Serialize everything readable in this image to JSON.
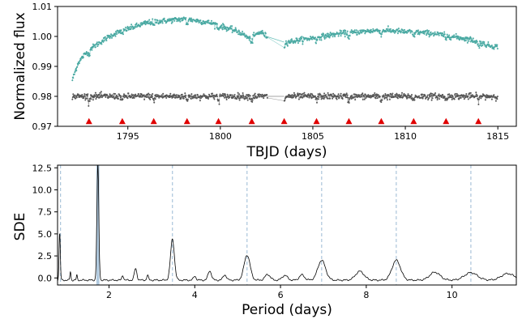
{
  "chart_data": [
    {
      "type": "scatter",
      "xlabel": "TBJD (days)",
      "ylabel": "Normalized flux",
      "xlim": [
        1791.2,
        1816.0
      ],
      "ylim": [
        0.97,
        1.01
      ],
      "xticks": [
        1795,
        1800,
        1805,
        1810,
        1815
      ],
      "xtick_labels": [
        "1795",
        "1800",
        "1805",
        "1810",
        "1815"
      ],
      "yticks": [
        0.97,
        0.98,
        0.99,
        1.0,
        1.01
      ],
      "ytick_labels": [
        "0.97",
        "0.98",
        "0.99",
        "1.00",
        "1.01"
      ],
      "grid": false,
      "colors": {
        "raw_flux": "#6fc3bd",
        "detrended_flux": "#555555",
        "transit_marker": "#e00000"
      },
      "raw_flux": {
        "x": [
          1792.0,
          1792.3,
          1792.6,
          1793.0,
          1793.5,
          1794.0,
          1794.5,
          1795.0,
          1795.5,
          1796.0,
          1796.5,
          1797.0,
          1797.5,
          1798.0,
          1798.5,
          1799.0,
          1799.5,
          1800.0,
          1800.5,
          1801.0,
          1801.3,
          1801.6,
          1801.9,
          1802.2,
          1802.5,
          1803.5,
          1804.0,
          1804.5,
          1805.0,
          1805.5,
          1806.0,
          1806.5,
          1807.0,
          1807.5,
          1808.0,
          1808.5,
          1809.0,
          1809.5,
          1810.0,
          1810.5,
          1811.0,
          1811.5,
          1812.0,
          1812.5,
          1813.0,
          1813.5,
          1814.0,
          1814.5,
          1815.0
        ],
        "y": [
          0.9855,
          0.991,
          0.9935,
          0.996,
          0.998,
          1.0,
          1.0015,
          1.0025,
          1.0035,
          1.0045,
          1.005,
          1.0052,
          1.0055,
          1.0058,
          1.0055,
          1.005,
          1.0045,
          1.0035,
          1.0025,
          1.0015,
          1.0005,
          0.999,
          1.0005,
          1.0015,
          1.0,
          0.998,
          0.9985,
          0.999,
          0.9995,
          1.0,
          1.0005,
          1.001,
          1.0012,
          1.0015,
          1.0018,
          1.002,
          1.002,
          1.0018,
          1.0015,
          1.0015,
          1.0012,
          1.001,
          1.0005,
          1.0,
          0.9995,
          0.999,
          0.998,
          0.997,
          0.9965
        ]
      },
      "detrended_flux": {
        "x": [
          1792.0,
          1793.0,
          1794.0,
          1795.0,
          1796.0,
          1797.0,
          1798.0,
          1799.0,
          1800.0,
          1801.0,
          1802.0,
          1802.5,
          1803.5,
          1804.5,
          1805.5,
          1806.5,
          1807.5,
          1808.5,
          1809.5,
          1810.5,
          1811.5,
          1812.5,
          1813.5,
          1814.5,
          1815.0
        ],
        "y": [
          0.98,
          0.98,
          0.98,
          0.98,
          0.98,
          0.98,
          0.98,
          0.98,
          0.98,
          0.98,
          0.98,
          0.98,
          0.98,
          0.98,
          0.98,
          0.98,
          0.98,
          0.98,
          0.98,
          0.98,
          0.98,
          0.98,
          0.98,
          0.98,
          0.98
        ]
      },
      "transit_times": [
        1792.9,
        1794.7,
        1796.4,
        1798.2,
        1799.9,
        1801.7,
        1803.45,
        1805.2,
        1806.95,
        1808.7,
        1810.45,
        1812.2,
        1813.95
      ],
      "transit_marker_y": 0.9717
    },
    {
      "type": "line",
      "xlabel": "Period (days)",
      "ylabel": "SDE",
      "xlim": [
        0.8,
        11.5
      ],
      "ylim": [
        -0.8,
        12.8
      ],
      "xticks": [
        2,
        4,
        6,
        8,
        10
      ],
      "xtick_labels": [
        "2",
        "4",
        "6",
        "8",
        "10"
      ],
      "yticks": [
        0.0,
        2.5,
        5.0,
        7.5,
        10.0,
        12.5
      ],
      "ytick_labels": [
        "0.0",
        "2.5",
        "5.0",
        "7.5",
        "10.0",
        "12.5"
      ],
      "grid": false,
      "colors": {
        "line": "#000000",
        "best_period_band": "#a9c4dc",
        "harmonic_line": "#9ab9d4"
      },
      "best_period": 1.74,
      "harmonic_periods": [
        0.87,
        3.48,
        5.22,
        6.96,
        8.7,
        10.44
      ],
      "peaks": [
        {
          "period": 0.85,
          "sde": 5.0,
          "width": 0.015
        },
        {
          "period": 1.1,
          "sde": 0.7,
          "width": 0.012
        },
        {
          "period": 1.25,
          "sde": 0.3,
          "width": 0.012
        },
        {
          "period": 1.74,
          "sde": 12.8,
          "width": 0.022
        },
        {
          "period": 2.32,
          "sde": 0.3,
          "width": 0.02
        },
        {
          "period": 2.62,
          "sde": 1.05,
          "width": 0.03
        },
        {
          "period": 2.9,
          "sde": 0.3,
          "width": 0.02
        },
        {
          "period": 3.48,
          "sde": 4.4,
          "width": 0.045
        },
        {
          "period": 4.0,
          "sde": 0.2,
          "width": 0.03
        },
        {
          "period": 4.35,
          "sde": 0.8,
          "width": 0.04
        },
        {
          "period": 4.7,
          "sde": 0.35,
          "width": 0.04
        },
        {
          "period": 5.22,
          "sde": 2.6,
          "width": 0.07
        },
        {
          "period": 5.7,
          "sde": 0.4,
          "width": 0.06
        },
        {
          "period": 6.1,
          "sde": 0.3,
          "width": 0.06
        },
        {
          "period": 6.5,
          "sde": 0.35,
          "width": 0.06
        },
        {
          "period": 6.96,
          "sde": 2.0,
          "width": 0.09
        },
        {
          "period": 7.85,
          "sde": 0.75,
          "width": 0.1
        },
        {
          "period": 8.7,
          "sde": 2.0,
          "width": 0.1
        },
        {
          "period": 9.6,
          "sde": 0.65,
          "width": 0.12
        },
        {
          "period": 10.44,
          "sde": 0.6,
          "width": 0.15
        },
        {
          "period": 11.3,
          "sde": 0.5,
          "width": 0.15
        }
      ],
      "baseline": -0.25
    }
  ]
}
